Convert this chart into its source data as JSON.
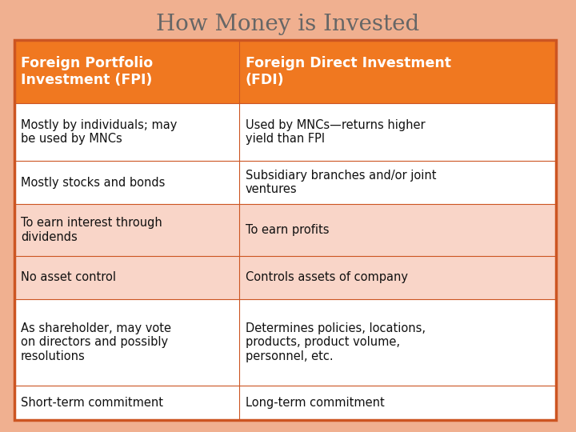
{
  "title": "How Money is Invested",
  "title_fontsize": 20,
  "title_color": "#666666",
  "bg_color": "#f0b090",
  "table_border_color": "#cc5522",
  "header_bg": "#f07820",
  "header_text_color": "#ffffff",
  "row_bg_light": "#f9d5c8",
  "row_bg_white": "#ffffff",
  "cell_text_color": "#111111",
  "col_split": 0.415,
  "headers": [
    "Foreign Portfolio\nInvestment (FPI)",
    "Foreign Direct Investment\n(FDI)"
  ],
  "rows": [
    [
      "Mostly by individuals; may\nbe used by MNCs",
      "Used by MNCs—returns higher\nyield than FPI"
    ],
    [
      "Mostly stocks and bonds",
      "Subsidiary branches and/or joint\nventures"
    ],
    [
      "To earn interest through\ndividends",
      "To earn profits"
    ],
    [
      "No asset control",
      "Controls assets of company"
    ],
    [
      "As shareholder, may vote\non directors and possibly\nresolutions",
      "Determines policies, locations,\nproducts, product volume,\npersonnel, etc."
    ],
    [
      "Short-term commitment",
      "Long-term commitment"
    ]
  ],
  "row_colors": [
    "white",
    "white",
    "light",
    "light",
    "white",
    "white"
  ],
  "row_heights_raw": [
    2.2,
    2.0,
    1.5,
    1.8,
    1.5,
    3.0,
    1.2
  ],
  "figsize": [
    7.2,
    5.4
  ],
  "dpi": 100
}
